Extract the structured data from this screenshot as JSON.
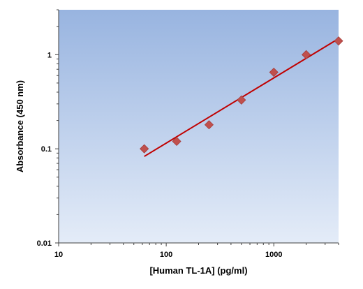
{
  "chart_data": {
    "type": "scatter",
    "title": "",
    "xlabel": "[Human TL-1A] (pg/ml)",
    "ylabel": "Absorbance (450 nm)",
    "x_scale": "log",
    "y_scale": "log",
    "xlim": [
      10,
      4000
    ],
    "ylim": [
      0.01,
      3
    ],
    "x_ticks": [
      {
        "value": 10,
        "label": "10"
      },
      {
        "value": 100,
        "label": "100"
      },
      {
        "value": 1000,
        "label": "1000"
      }
    ],
    "y_ticks": [
      {
        "value": 0.01,
        "label": "0.01"
      },
      {
        "value": 0.1,
        "label": "0.1"
      },
      {
        "value": 1,
        "label": "1"
      }
    ],
    "grid": false,
    "legend": "none",
    "series": [
      {
        "marker": "diamond",
        "color": "#c0504d",
        "points": [
          {
            "x": 62.5,
            "y": 0.1
          },
          {
            "x": 125,
            "y": 0.12
          },
          {
            "x": 250,
            "y": 0.18
          },
          {
            "x": 500,
            "y": 0.33
          },
          {
            "x": 1000,
            "y": 0.65
          },
          {
            "x": 2000,
            "y": 1.0
          },
          {
            "x": 4000,
            "y": 1.4
          }
        ]
      }
    ],
    "fit_line": {
      "color": "#c00000",
      "points": [
        {
          "x": 62.5,
          "y": 0.083
        },
        {
          "x": 4000,
          "y": 1.48
        }
      ]
    },
    "plot_background": {
      "top": "#98b4e0",
      "bottom": "#e4ecf8"
    }
  }
}
